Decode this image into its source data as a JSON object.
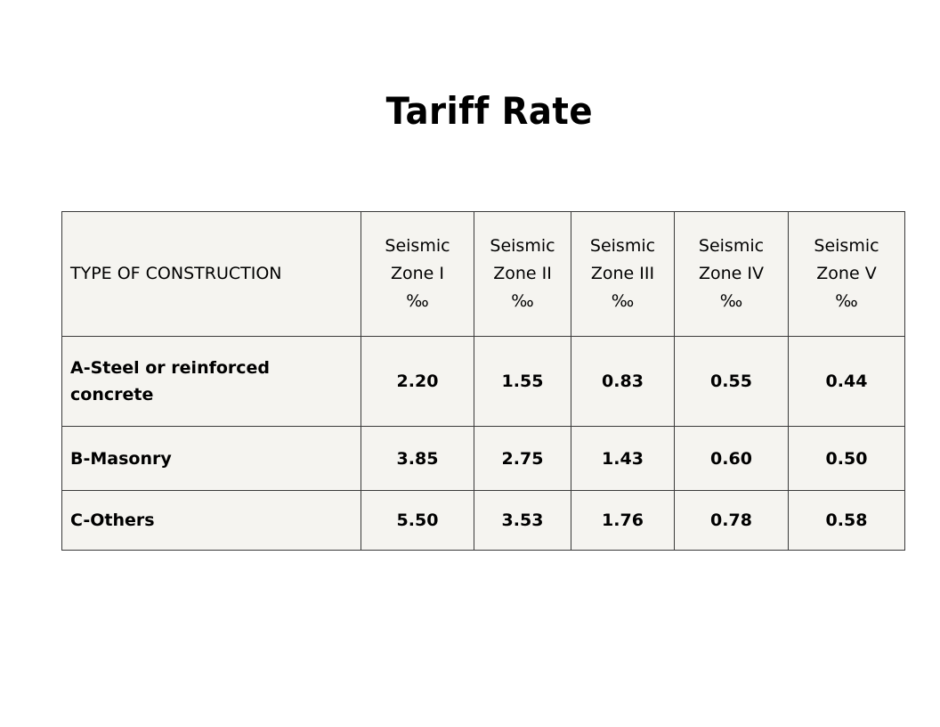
{
  "title": "Tariff Rate",
  "chart_data": {
    "type": "table",
    "title": "Tariff Rate",
    "columns": [
      {
        "label": "TYPE OF CONSTRUCTION"
      },
      {
        "lines": [
          "Seismic",
          "Zone I",
          "‰"
        ]
      },
      {
        "lines": [
          "Seismic",
          "Zone II",
          "‰"
        ]
      },
      {
        "lines": [
          "Seismic",
          "Zone III",
          "‰"
        ]
      },
      {
        "lines": [
          "Seismic",
          "Zone IV",
          "‰"
        ]
      },
      {
        "lines": [
          "Seismic",
          "Zone V",
          "‰"
        ]
      }
    ],
    "rows": [
      {
        "type": "A-Steel or reinforced concrete",
        "values": [
          "2.20",
          "1.55",
          "0.83",
          "0.55",
          "0.44"
        ]
      },
      {
        "type": "B-Masonry",
        "values": [
          "3.85",
          "2.75",
          "1.43",
          "0.60",
          "0.50"
        ]
      },
      {
        "type": "C-Others",
        "values": [
          "5.50",
          "3.53",
          "1.76",
          "0.78",
          "0.58"
        ]
      }
    ]
  }
}
